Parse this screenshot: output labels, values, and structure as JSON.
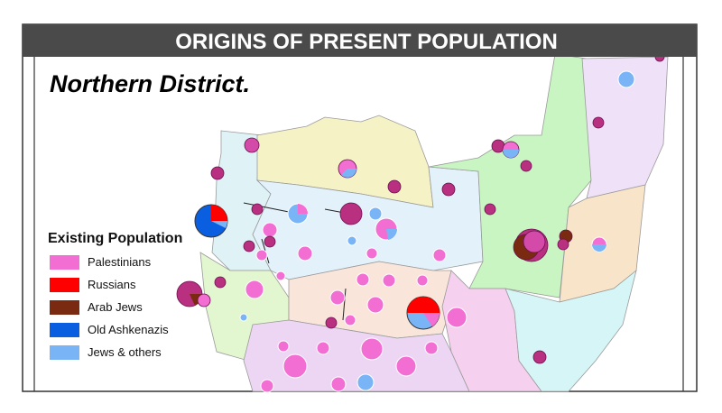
{
  "header": {
    "title": "ORIGINS OF PRESENT POPULATION"
  },
  "map": {
    "title": "Northern District."
  },
  "legend": {
    "title": "Existing Population",
    "items": [
      {
        "label": "Palestinians",
        "color": "#f26ed3"
      },
      {
        "label": "Russians",
        "color": "#ff0000"
      },
      {
        "label": "Arab Jews",
        "color": "#7a2a10"
      },
      {
        "label": "Old Ashkenazis",
        "color": "#0a5ee0"
      },
      {
        "label": "Jews & others",
        "color": "#79b4f7"
      }
    ]
  }
}
